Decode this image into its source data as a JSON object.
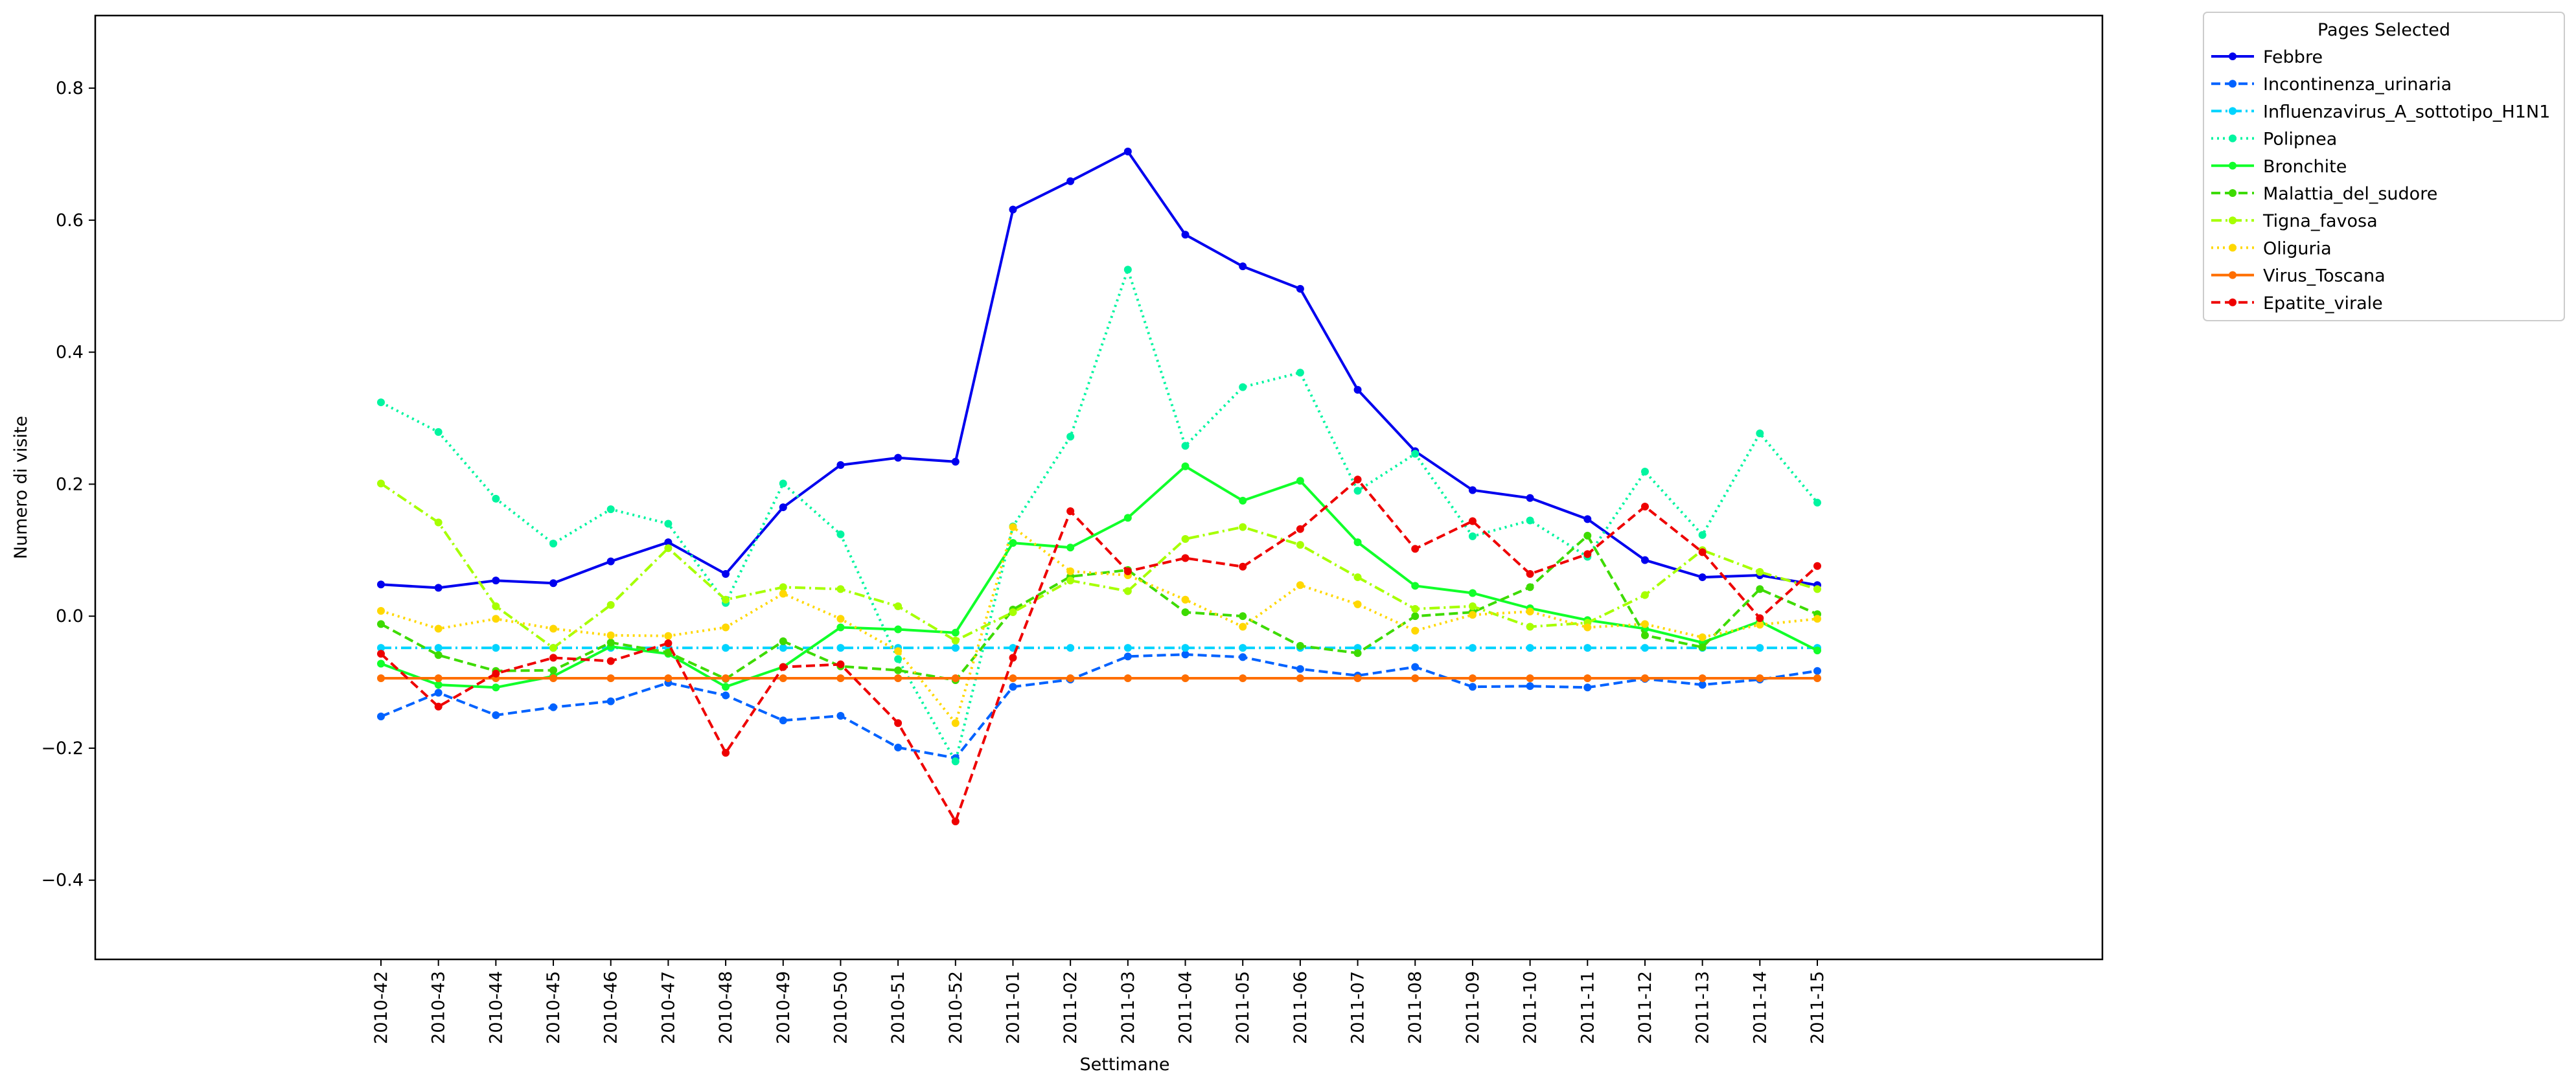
{
  "chart_data": {
    "type": "line",
    "title": "",
    "xlabel": "Settimane",
    "ylabel": "Numero di visite",
    "ylim": [
      -0.52,
      0.91
    ],
    "yticks": [
      -0.4,
      -0.2,
      0.0,
      0.2,
      0.4,
      0.6,
      0.8
    ],
    "ytick_labels": [
      "−0.4",
      "−0.2",
      "0.0",
      "0.2",
      "0.4",
      "0.6",
      "0.8"
    ],
    "grid": false,
    "legend": {
      "title": "Pages Selected",
      "placement": "outside top-right"
    },
    "categories": [
      "2010-42",
      "2010-43",
      "2010-44",
      "2010-45",
      "2010-46",
      "2010-47",
      "2010-48",
      "2010-49",
      "2010-50",
      "2010-51",
      "2010-52",
      "2011-01",
      "2011-02",
      "2011-03",
      "2011-04",
      "2011-05",
      "2011-06",
      "2011-07",
      "2011-08",
      "2011-09",
      "2011-10",
      "2011-11",
      "2011-12",
      "2011-13",
      "2011-14",
      "2011-15"
    ],
    "series": [
      {
        "name": "Febbre",
        "color": "#0000ee",
        "dash": "solid",
        "values": [
          0.048,
          0.043,
          0.054,
          0.05,
          0.083,
          0.112,
          0.064,
          0.165,
          0.229,
          0.24,
          0.234,
          0.616,
          0.659,
          0.704,
          0.578,
          0.53,
          0.496,
          0.343,
          0.25,
          0.191,
          0.179,
          0.147,
          0.085,
          0.059,
          0.062,
          0.047
        ]
      },
      {
        "name": "Incontinenza_urinaria",
        "color": "#0062ff",
        "dash": "dashed",
        "values": [
          -0.152,
          -0.116,
          -0.15,
          -0.138,
          -0.129,
          -0.101,
          -0.12,
          -0.158,
          -0.151,
          -0.199,
          -0.215,
          -0.107,
          -0.096,
          -0.061,
          -0.058,
          -0.062,
          -0.08,
          -0.09,
          -0.077,
          -0.107,
          -0.106,
          -0.108,
          -0.095,
          -0.104,
          -0.096,
          -0.083
        ]
      },
      {
        "name": "Influenzavirus_A_sottotipo_H1N1",
        "color": "#00d4ff",
        "dash": "dashdot",
        "values": [
          -0.048,
          -0.048,
          -0.048,
          -0.048,
          -0.048,
          -0.048,
          -0.048,
          -0.048,
          -0.048,
          -0.048,
          -0.048,
          -0.048,
          -0.048,
          -0.048,
          -0.048,
          -0.048,
          -0.048,
          -0.048,
          -0.048,
          -0.048,
          -0.048,
          -0.048,
          -0.048,
          -0.048,
          -0.048,
          -0.048
        ]
      },
      {
        "name": "Polipnea",
        "color": "#00f5a0",
        "dash": "dotted",
        "values": [
          0.324,
          0.279,
          0.178,
          0.11,
          0.162,
          0.14,
          0.02,
          0.201,
          0.124,
          -0.065,
          -0.22,
          0.136,
          0.272,
          0.525,
          0.258,
          0.347,
          0.369,
          0.19,
          0.246,
          0.121,
          0.145,
          0.09,
          0.219,
          0.123,
          0.277,
          0.172
        ]
      },
      {
        "name": "Bronchite",
        "color": "#11ff2a",
        "dash": "solid",
        "values": [
          -0.072,
          -0.104,
          -0.108,
          -0.091,
          -0.046,
          -0.057,
          -0.107,
          -0.077,
          -0.017,
          -0.02,
          -0.025,
          0.111,
          0.104,
          0.149,
          0.227,
          0.175,
          0.205,
          0.112,
          0.046,
          0.035,
          0.012,
          -0.006,
          -0.019,
          -0.04,
          -0.008,
          -0.052
        ]
      },
      {
        "name": "Malattia_del_sudore",
        "color": "#3ddb00",
        "dash": "dashed",
        "values": [
          -0.012,
          -0.059,
          -0.083,
          -0.082,
          -0.04,
          -0.055,
          -0.095,
          -0.038,
          -0.076,
          -0.082,
          -0.097,
          0.01,
          0.06,
          0.07,
          0.006,
          0.0,
          -0.045,
          -0.056,
          0.0,
          0.006,
          0.044,
          0.122,
          -0.029,
          -0.047,
          0.041,
          0.003
        ]
      },
      {
        "name": "Tigna_favosa",
        "color": "#a6ff00",
        "dash": "dashdot",
        "values": [
          0.201,
          0.142,
          0.015,
          -0.048,
          0.017,
          0.103,
          0.025,
          0.044,
          0.041,
          0.015,
          -0.037,
          0.006,
          0.054,
          0.038,
          0.117,
          0.135,
          0.108,
          0.059,
          0.011,
          0.015,
          -0.016,
          -0.01,
          0.032,
          0.1,
          0.067,
          0.041
        ]
      },
      {
        "name": "Oliguria",
        "color": "#ffd800",
        "dash": "dotted",
        "values": [
          0.008,
          -0.019,
          -0.004,
          -0.019,
          -0.029,
          -0.03,
          -0.017,
          0.034,
          -0.004,
          -0.053,
          -0.162,
          0.135,
          0.068,
          0.062,
          0.025,
          -0.016,
          0.047,
          0.018,
          -0.022,
          0.002,
          0.007,
          -0.017,
          -0.012,
          -0.032,
          -0.013,
          -0.004
        ]
      },
      {
        "name": "Virus_Toscana",
        "color": "#ff6e00",
        "dash": "solid",
        "values": [
          -0.094,
          -0.094,
          -0.094,
          -0.094,
          -0.094,
          -0.094,
          -0.094,
          -0.094,
          -0.094,
          -0.094,
          -0.094,
          -0.094,
          -0.094,
          -0.094,
          -0.094,
          -0.094,
          -0.094,
          -0.094,
          -0.094,
          -0.094,
          -0.094,
          -0.094,
          -0.094,
          -0.094,
          -0.094,
          -0.094
        ]
      },
      {
        "name": "Epatite_virale",
        "color": "#ee0000",
        "dash": "dashed",
        "values": [
          -0.057,
          -0.137,
          -0.087,
          -0.063,
          -0.068,
          -0.041,
          -0.207,
          -0.077,
          -0.073,
          -0.162,
          -0.311,
          -0.063,
          0.159,
          0.068,
          0.088,
          0.075,
          0.132,
          0.207,
          0.102,
          0.144,
          0.064,
          0.094,
          0.166,
          0.097,
          -0.003,
          0.076
        ]
      }
    ]
  }
}
